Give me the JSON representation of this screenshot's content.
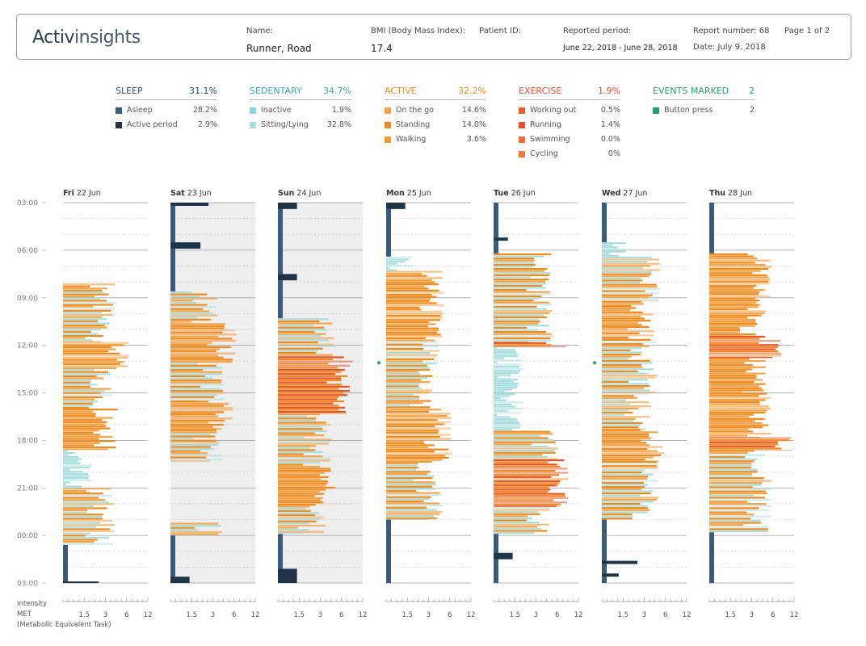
{
  "header": {
    "logo_bold": "Activ",
    "logo_light": "insights",
    "name_label": "Name:",
    "name_value": "Runner, Road",
    "bmi_label": "BMI (Body Mass Index):",
    "bmi_value": "17.4",
    "patient_label": "Patient ID:",
    "period_label": "Reported period:",
    "period_value": "June 22, 2018 - June 28, 2018",
    "report_label": "Report number: 68",
    "date_label": "Date: July 9, 2018",
    "page_label": "Page 1 of 2"
  },
  "summary": [
    {
      "title": "SLEEP",
      "pct": "31.1%",
      "color": "#2a4d6e",
      "items": [
        {
          "label": "Asleep",
          "pct": "28.2%",
          "color": "#3a5c7a"
        },
        {
          "label": "Active period",
          "pct": "2.9%",
          "color": "#1f3447"
        }
      ]
    },
    {
      "title": "SEDENTARY",
      "pct": "34.7%",
      "color": "#3aa7b5",
      "items": [
        {
          "label": "Inactive",
          "pct": "1.9%",
          "color": "#8fd4d6"
        },
        {
          "label": "Sitting/Lying",
          "pct": "32.8%",
          "color": "#a9dede"
        }
      ]
    },
    {
      "title": "ACTIVE",
      "pct": "32.2%",
      "color": "#f08a1c",
      "items": [
        {
          "label": "On the go",
          "pct": "14.6%",
          "color": "#f4a44a"
        },
        {
          "label": "Standing",
          "pct": "14.0%",
          "color": "#f08a1c"
        },
        {
          "label": "Walking",
          "pct": "3.6%",
          "color": "#f29b33"
        }
      ]
    },
    {
      "title": "EXERCISE",
      "pct": "1.9%",
      "color": "#e8502a",
      "items": [
        {
          "label": "Working out",
          "pct": "0.5%",
          "color": "#e8602a"
        },
        {
          "label": "Running",
          "pct": "1.4%",
          "color": "#e8502a"
        },
        {
          "label": "Swimming",
          "pct": "0.0%",
          "color": "#ef6b3a"
        },
        {
          "label": "Cycling",
          "pct": "0%",
          "color": "#f07a40"
        }
      ]
    },
    {
      "title": "EVENTS MARKED",
      "pct": "2",
      "color": "#27a36a",
      "items": [
        {
          "label": "Button press",
          "pct": "2",
          "color": "#27a36a"
        }
      ]
    }
  ],
  "chart_data": {
    "type": "bar",
    "time_labels": [
      "03:00",
      "06:00",
      "09:00",
      "12:00",
      "15:00",
      "18:00",
      "21:00",
      "00:00",
      "03:00"
    ],
    "days": [
      {
        "weekday": "Fri",
        "date": "22 Jun",
        "shaded": false,
        "event_hour": null
      },
      {
        "weekday": "Sat",
        "date": "23 Jun",
        "shaded": true,
        "event_hour": null
      },
      {
        "weekday": "Sun",
        "date": "24 Jun",
        "shaded": true,
        "event_hour": null
      },
      {
        "weekday": "Mon",
        "date": "25 Jun",
        "shaded": false,
        "event_hour": 13.1
      },
      {
        "weekday": "Tue",
        "date": "26 Jun",
        "shaded": false,
        "event_hour": null
      },
      {
        "weekday": "Wed",
        "date": "27 Jun",
        "shaded": false,
        "event_hour": 13.1
      },
      {
        "weekday": "Thu",
        "date": "28 Jun",
        "shaded": false,
        "event_hour": null
      }
    ],
    "segments": [
      [
        {
          "start": 8.1,
          "end": 8.6,
          "cat": "active",
          "met": 3
        },
        {
          "start": 8.6,
          "end": 9.5,
          "cat": "mixed",
          "met": 3
        },
        {
          "start": 9.5,
          "end": 11.8,
          "cat": "mixed",
          "met": 2.8
        },
        {
          "start": 11.8,
          "end": 13.5,
          "cat": "active",
          "met": 4.5
        },
        {
          "start": 13.5,
          "end": 16,
          "cat": "mixed",
          "met": 2.8
        },
        {
          "start": 16,
          "end": 18.6,
          "cat": "active",
          "met": 3.5
        },
        {
          "start": 18.6,
          "end": 21,
          "cat": "sedentary",
          "met": 1.4
        },
        {
          "start": 21,
          "end": 21.3,
          "cat": "active",
          "met": 2.6
        },
        {
          "start": 21.3,
          "end": 24.6,
          "cat": "mixed",
          "met": 2.8
        },
        {
          "start": 24.6,
          "end": 26.9,
          "cat": "sleep",
          "met": 1
        },
        {
          "start": 26.9,
          "end": 27,
          "cat": "sleep_active",
          "met": 2.4
        }
      ],
      [
        {
          "start": 3,
          "end": 3.2,
          "cat": "sleep_active",
          "met": 2.6
        },
        {
          "start": 3.2,
          "end": 5.5,
          "cat": "sleep",
          "met": 1
        },
        {
          "start": 5.5,
          "end": 5.9,
          "cat": "sleep_active",
          "met": 2
        },
        {
          "start": 5.9,
          "end": 8.6,
          "cat": "sleep",
          "met": 1
        },
        {
          "start": 8.6,
          "end": 10.6,
          "cat": "mixed",
          "met": 2.5
        },
        {
          "start": 10.6,
          "end": 13.1,
          "cat": "active",
          "met": 4.5
        },
        {
          "start": 13.1,
          "end": 15.5,
          "cat": "mixed",
          "met": 3.2
        },
        {
          "start": 15.5,
          "end": 17.3,
          "cat": "active",
          "met": 4.2
        },
        {
          "start": 17.3,
          "end": 19.3,
          "cat": "mixed",
          "met": 2.8
        },
        {
          "start": 23.2,
          "end": 24,
          "cat": "mixed",
          "met": 3
        },
        {
          "start": 24,
          "end": 26.6,
          "cat": "sleep",
          "met": 1
        },
        {
          "start": 26.6,
          "end": 27,
          "cat": "sleep_active",
          "met": 1.4
        }
      ],
      [
        {
          "start": 3,
          "end": 3.4,
          "cat": "sleep_active",
          "met": 1.4
        },
        {
          "start": 3.4,
          "end": 7.5,
          "cat": "sleep",
          "met": 1
        },
        {
          "start": 7.5,
          "end": 7.9,
          "cat": "sleep_active",
          "met": 1.4
        },
        {
          "start": 7.9,
          "end": 10.3,
          "cat": "sleep",
          "met": 1
        },
        {
          "start": 10.3,
          "end": 12.7,
          "cat": "mixed",
          "met": 3.5
        },
        {
          "start": 12.7,
          "end": 16.3,
          "cat": "exercise",
          "met": 6
        },
        {
          "start": 16.3,
          "end": 19.6,
          "cat": "mixed",
          "met": 3
        },
        {
          "start": 19.6,
          "end": 22,
          "cat": "active",
          "met": 3.8
        },
        {
          "start": 22,
          "end": 23.9,
          "cat": "mixed",
          "met": 2.5
        },
        {
          "start": 23.9,
          "end": 26.1,
          "cat": "sleep",
          "met": 1
        },
        {
          "start": 26.1,
          "end": 27,
          "cat": "sleep_active",
          "met": 1.4
        }
      ],
      [
        {
          "start": 3,
          "end": 3.4,
          "cat": "sleep_active",
          "met": 1.4
        },
        {
          "start": 3.4,
          "end": 6.4,
          "cat": "sleep",
          "met": 1
        },
        {
          "start": 6.4,
          "end": 7.3,
          "cat": "sedentary",
          "met": 1.3
        },
        {
          "start": 7.3,
          "end": 11.5,
          "cat": "active",
          "met": 3.5
        },
        {
          "start": 11.5,
          "end": 14,
          "cat": "mixed",
          "met": 3
        },
        {
          "start": 14,
          "end": 16,
          "cat": "mixed",
          "met": 2.5
        },
        {
          "start": 16,
          "end": 19.4,
          "cat": "active",
          "met": 4.5
        },
        {
          "start": 19.4,
          "end": 20.6,
          "cat": "mixed",
          "met": 2.8
        },
        {
          "start": 20.6,
          "end": 23,
          "cat": "mixed",
          "met": 3.5
        },
        {
          "start": 23,
          "end": 27,
          "cat": "sleep",
          "met": 1
        }
      ],
      [
        {
          "start": 3,
          "end": 5.2,
          "cat": "sleep",
          "met": 1
        },
        {
          "start": 5.2,
          "end": 5.4,
          "cat": "sleep_active",
          "met": 1.2
        },
        {
          "start": 5.4,
          "end": 6.2,
          "cat": "sleep",
          "met": 1
        },
        {
          "start": 6.2,
          "end": 11.8,
          "cat": "mixed",
          "met": 3.8
        },
        {
          "start": 11.8,
          "end": 12.1,
          "cat": "exercise",
          "met": 6.5
        },
        {
          "start": 12.1,
          "end": 17.4,
          "cat": "sedentary",
          "met": 1.4
        },
        {
          "start": 17.4,
          "end": 19.2,
          "cat": "mixed",
          "met": 4.5
        },
        {
          "start": 19.2,
          "end": 22.2,
          "cat": "exercise",
          "met": 6
        },
        {
          "start": 22.2,
          "end": 23.9,
          "cat": "mixed",
          "met": 3.5
        },
        {
          "start": 23.9,
          "end": 25.1,
          "cat": "sleep",
          "met": 1
        },
        {
          "start": 25.1,
          "end": 25.5,
          "cat": "sleep_active",
          "met": 1.4
        },
        {
          "start": 25.5,
          "end": 27,
          "cat": "sleep",
          "met": 1
        }
      ],
      [
        {
          "start": 3,
          "end": 5.5,
          "cat": "sleep",
          "met": 1
        },
        {
          "start": 5.5,
          "end": 6.4,
          "cat": "sedentary",
          "met": 1.3
        },
        {
          "start": 6.4,
          "end": 9.2,
          "cat": "mixed",
          "met": 3.5
        },
        {
          "start": 9.2,
          "end": 11.6,
          "cat": "active",
          "met": 3
        },
        {
          "start": 11.6,
          "end": 15,
          "cat": "mixed",
          "met": 3.2
        },
        {
          "start": 15,
          "end": 17.3,
          "cat": "mixed",
          "met": 2.6
        },
        {
          "start": 17.3,
          "end": 19.3,
          "cat": "active",
          "met": 4
        },
        {
          "start": 19.3,
          "end": 23,
          "cat": "mixed",
          "met": 3.5
        },
        {
          "start": 23,
          "end": 25.6,
          "cat": "sleep",
          "met": 1
        },
        {
          "start": 25.6,
          "end": 25.8,
          "cat": "sleep_active",
          "met": 2.4
        },
        {
          "start": 25.8,
          "end": 26.4,
          "cat": "sleep",
          "met": 1
        },
        {
          "start": 26.4,
          "end": 26.6,
          "cat": "sleep_active",
          "met": 1.3
        },
        {
          "start": 26.6,
          "end": 27,
          "cat": "sleep",
          "met": 1
        }
      ],
      [
        {
          "start": 3,
          "end": 6.2,
          "cat": "sleep",
          "met": 1
        },
        {
          "start": 6.2,
          "end": 9.4,
          "cat": "active",
          "met": 4
        },
        {
          "start": 9.4,
          "end": 11.4,
          "cat": "active",
          "met": 3.5
        },
        {
          "start": 11.4,
          "end": 12.8,
          "cat": "exercise",
          "met": 5.5
        },
        {
          "start": 12.8,
          "end": 15,
          "cat": "active",
          "met": 3.8
        },
        {
          "start": 15,
          "end": 17.8,
          "cat": "active",
          "met": 4
        },
        {
          "start": 17.8,
          "end": 18.6,
          "cat": "exercise",
          "met": 8
        },
        {
          "start": 18.6,
          "end": 20.5,
          "cat": "mixed",
          "met": 3.5
        },
        {
          "start": 20.5,
          "end": 23.8,
          "cat": "mixed",
          "met": 4
        },
        {
          "start": 23.8,
          "end": 27,
          "cat": "sleep",
          "met": 1
        }
      ]
    ],
    "x_scale": "log",
    "x_ticks": [
      "1.5",
      "3",
      "6",
      "12"
    ],
    "xlabel_line1": "Intensity",
    "xlabel_line2": "MET",
    "xlabel_line3": "(Metabolic Equivalent Task)",
    "colors": {
      "sleep": "#3a5c7a",
      "sleep_active": "#1f3447",
      "sedentary": "#a9dede",
      "active": "#f08a1c",
      "active_light": "#f4a44a",
      "exercise": "#e8502a",
      "event": "#27a36a",
      "shade": "#eeeeee",
      "grid": "#999999"
    }
  }
}
